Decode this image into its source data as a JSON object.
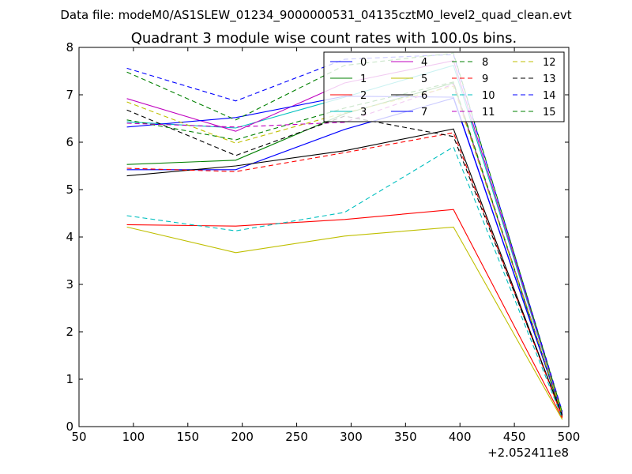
{
  "suptitle": "Data file: modeM0/AS1SLEW_01234_9000000531_04135cztM0_level2_quad_clean.evt",
  "chart_data": {
    "type": "line",
    "title": "Quadrant 3 module wise count rates with 100.0s bins.",
    "xlabel": "",
    "ylabel": "",
    "xlim": [
      50,
      500
    ],
    "ylim": [
      0,
      8
    ],
    "xticks": [
      50,
      100,
      150,
      200,
      250,
      300,
      350,
      400,
      450,
      500
    ],
    "yticks": [
      0,
      1,
      2,
      3,
      4,
      5,
      6,
      7,
      8
    ],
    "x_offset_label": "+2.052411e8",
    "grid": false,
    "legend_position": "top-right",
    "legend_columns": 4,
    "x": [
      94,
      194,
      294,
      394,
      494
    ],
    "series": [
      {
        "name": "0",
        "color": "#0000ff",
        "style": "solid",
        "values": [
          5.42,
          5.42,
          6.27,
          6.93,
          0.25
        ]
      },
      {
        "name": "1",
        "color": "#008000",
        "style": "solid",
        "values": [
          5.53,
          5.62,
          6.6,
          7.25,
          0.2
        ]
      },
      {
        "name": "2",
        "color": "#ff0000",
        "style": "solid",
        "values": [
          4.26,
          4.23,
          4.37,
          4.58,
          0.18
        ]
      },
      {
        "name": "3",
        "color": "#00bfbf",
        "style": "solid",
        "values": [
          6.43,
          6.3,
          6.95,
          7.62,
          0.28
        ]
      },
      {
        "name": "4",
        "color": "#bf00bf",
        "style": "solid",
        "values": [
          6.92,
          6.23,
          7.25,
          7.72,
          0.3
        ]
      },
      {
        "name": "5",
        "color": "#bfbf00",
        "style": "solid",
        "values": [
          4.21,
          3.67,
          4.02,
          4.21,
          0.15
        ]
      },
      {
        "name": "6",
        "color": "#000000",
        "style": "solid",
        "values": [
          5.29,
          5.5,
          5.82,
          6.28,
          0.22
        ]
      },
      {
        "name": "7",
        "color": "#0000ff",
        "style": "solid",
        "values": [
          6.32,
          6.52,
          6.97,
          6.95,
          0.26
        ]
      },
      {
        "name": "8",
        "color": "#008000",
        "style": "dashed",
        "values": [
          6.47,
          6.05,
          6.72,
          7.27,
          0.24
        ]
      },
      {
        "name": "9",
        "color": "#ff0000",
        "style": "dashed",
        "values": [
          5.45,
          5.38,
          5.78,
          6.2,
          0.2
        ]
      },
      {
        "name": "10",
        "color": "#00bfbf",
        "style": "dashed",
        "values": [
          4.45,
          4.13,
          4.52,
          5.9,
          0.18
        ]
      },
      {
        "name": "11",
        "color": "#bf00bf",
        "style": "dashed",
        "values": [
          6.4,
          6.32,
          6.42,
          7.22,
          0.27
        ]
      },
      {
        "name": "12",
        "color": "#bfbf00",
        "style": "dashed",
        "values": [
          6.85,
          5.98,
          6.62,
          7.18,
          0.26
        ]
      },
      {
        "name": "13",
        "color": "#000000",
        "style": "dashed",
        "values": [
          6.68,
          5.72,
          6.55,
          6.12,
          0.24
        ]
      },
      {
        "name": "14",
        "color": "#0000ff",
        "style": "dashed",
        "values": [
          7.56,
          6.87,
          7.75,
          7.85,
          0.32
        ]
      },
      {
        "name": "15",
        "color": "#008000",
        "style": "dashed",
        "values": [
          7.48,
          6.47,
          7.62,
          7.88,
          0.3
        ]
      }
    ]
  }
}
